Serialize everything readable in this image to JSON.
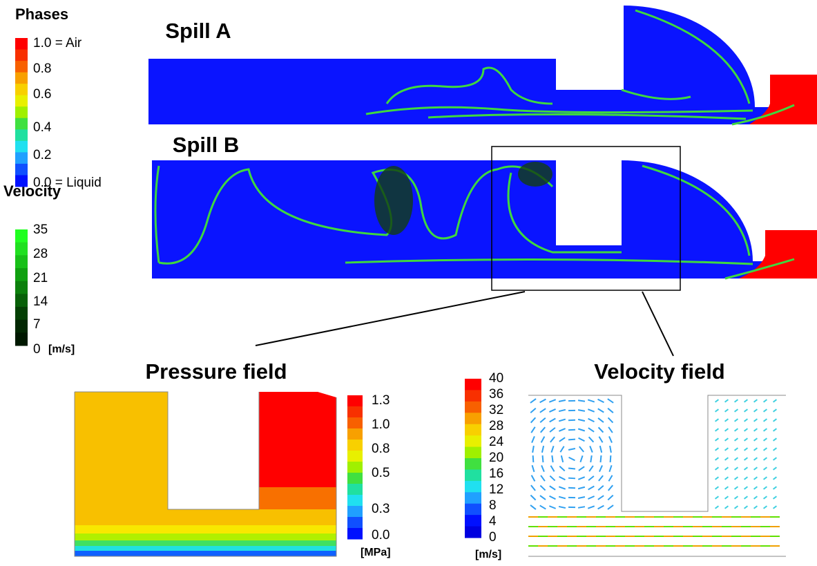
{
  "phases_legend": {
    "title": "Phases",
    "labels": [
      "1.0 = Air",
      "0.8",
      "0.6",
      "0.4",
      "0.2",
      "0.0 = Liquid"
    ]
  },
  "velocity_legend": {
    "title": "Velocity",
    "labels": [
      "35",
      "28",
      "21",
      "14",
      "7",
      "0"
    ],
    "unit": "[m/s]"
  },
  "panels": {
    "spill_a": "Spill A",
    "spill_b": "Spill B",
    "pressure": "Pressure field",
    "velocity": "Velocity field"
  },
  "pressure_legend": {
    "labels": [
      "1.3",
      "1.0",
      "0.8",
      "0.5",
      "0.3",
      "0.0"
    ],
    "unit": "[MPa]"
  },
  "velocity_field_legend": {
    "labels": [
      "40",
      "36",
      "32",
      "28",
      "24",
      "20",
      "16",
      "12",
      "8",
      "4",
      "0"
    ],
    "unit": "[m/s]"
  }
}
